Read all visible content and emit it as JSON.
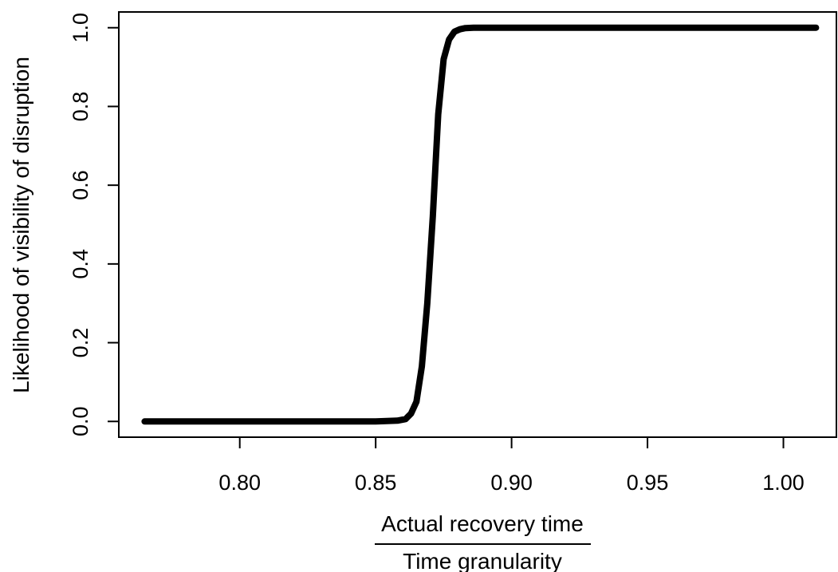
{
  "chart_data": {
    "type": "line",
    "title": "",
    "xlabel_numerator": "Actual recovery time",
    "xlabel_denominator": "Time granularity",
    "ylabel": "Likelihood of visibility of disruption",
    "xlim": [
      0.7555,
      1.0195
    ],
    "ylim": [
      -0.04,
      1.04
    ],
    "xticks": [
      0.8,
      0.85,
      0.9,
      0.95,
      1.0
    ],
    "xtick_labels": [
      "0.80",
      "0.85",
      "0.90",
      "0.95",
      "1.00"
    ],
    "yticks": [
      0.0,
      0.2,
      0.4,
      0.6,
      0.8,
      1.0
    ],
    "ytick_labels": [
      "0.0",
      "0.2",
      "0.4",
      "0.6",
      "0.8",
      "1.0"
    ],
    "grid": false,
    "series": [
      {
        "x": [
          0.765,
          0.8,
          0.85,
          0.858,
          0.861,
          0.863,
          0.865,
          0.867,
          0.869,
          0.871,
          0.873,
          0.875,
          0.877,
          0.879,
          0.881,
          0.883,
          0.886,
          0.89,
          0.95,
          1.012
        ],
        "y": [
          0.0,
          0.0,
          0.0,
          0.002,
          0.006,
          0.02,
          0.05,
          0.14,
          0.3,
          0.52,
          0.78,
          0.92,
          0.97,
          0.99,
          0.996,
          0.999,
          1.0,
          1.0,
          1.0,
          1.0
        ]
      }
    ]
  }
}
